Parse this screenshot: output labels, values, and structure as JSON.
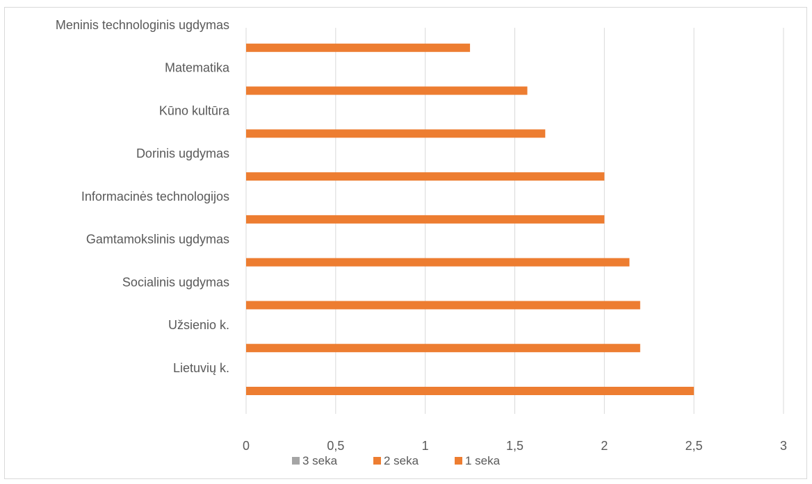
{
  "chart_data": {
    "type": "bar",
    "orientation": "horizontal",
    "title": "",
    "xlabel": "",
    "ylabel": "",
    "categories": [
      "Lietuvių k.",
      "Užsienio k.",
      "Socialinis ugdymas",
      "Gamtamokslinis ugdymas",
      "Informacinės technologijos",
      "Dorinis ugdymas",
      "Kūno kultūra",
      "Matematika",
      "Meninis technologinis ugdymas"
    ],
    "series": [
      {
        "name": "3 seka",
        "color": "#a5a5a5",
        "values": [
          null,
          null,
          null,
          null,
          null,
          null,
          null,
          null,
          null
        ]
      },
      {
        "name": "2 seka",
        "color": "#ed7d31",
        "values": [
          null,
          null,
          null,
          null,
          null,
          null,
          null,
          null,
          null
        ]
      },
      {
        "name": "1 seka",
        "color": "#ed7d31",
        "values": [
          2.5,
          2.2,
          2.2,
          2.14,
          2.0,
          2.0,
          1.67,
          1.57,
          1.25
        ]
      }
    ],
    "xlim": [
      0,
      3
    ],
    "xticks": [
      "0",
      "0,5",
      "1",
      "1,5",
      "2",
      "2,5",
      "3"
    ],
    "grid": "vertical",
    "legend_position": "bottom"
  }
}
